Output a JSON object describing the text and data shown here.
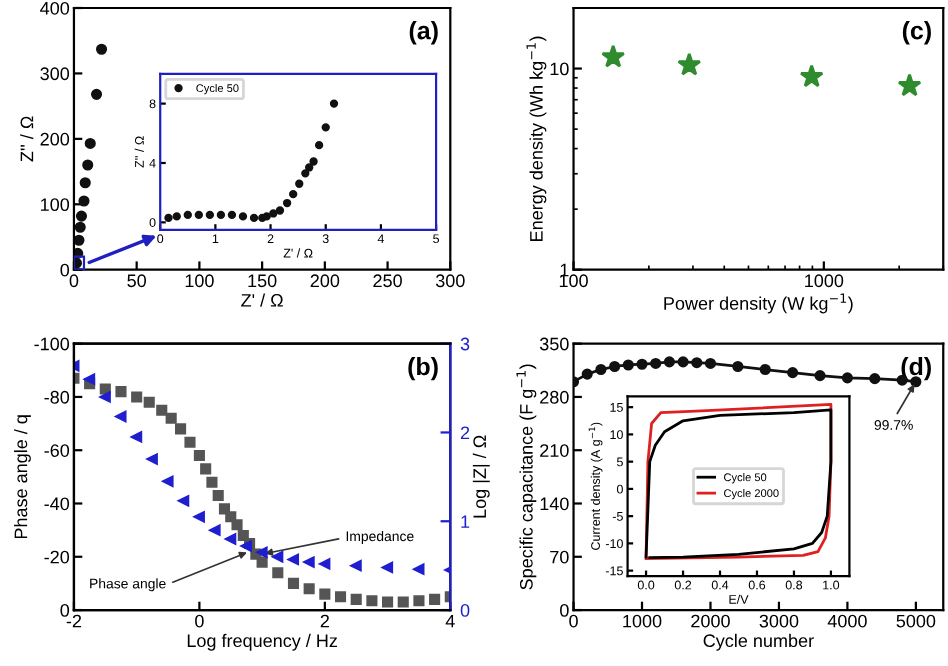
{
  "chart_data": [
    {
      "type": "scatter",
      "xlabel": "Z' / Ω",
      "ylabel": "Z'' / Ω",
      "xlim": [
        0,
        300
      ],
      "ylim": [
        0,
        400
      ],
      "xticks": [
        0,
        50,
        100,
        150,
        200,
        250,
        300
      ],
      "yticks": [
        0,
        100,
        200,
        300,
        400
      ],
      "marker": "circle",
      "annotations": [
        "(a)"
      ],
      "series": [
        {
          "color": "#111111",
          "x": [
            2,
            3,
            4,
            5,
            6,
            8,
            9,
            11,
            13,
            18,
            22
          ],
          "values": [
            10,
            25,
            45,
            65,
            82,
            105,
            133,
            160,
            193,
            268,
            337
          ]
        }
      ]
    },
    {
      "type": "scatter",
      "xlabel": "Z' / Ω",
      "ylabel": "Z'' / Ω",
      "xlim": [
        0,
        5
      ],
      "ylim": [
        -0.5,
        10
      ],
      "xticks": [
        0,
        1,
        2,
        3,
        4,
        5
      ],
      "yticks": [
        0,
        4,
        8
      ],
      "marker": "circle",
      "legend": "top left",
      "series": [
        {
          "name": "Cycle 50",
          "color": "#111111",
          "x": [
            0.15,
            0.3,
            0.5,
            0.7,
            0.9,
            1.1,
            1.3,
            1.5,
            1.7,
            1.85,
            1.93,
            2.05,
            2.17,
            2.3,
            2.41,
            2.52,
            2.63,
            2.7,
            2.78,
            2.88,
            3.0,
            3.15
          ],
          "values": [
            0.3,
            0.4,
            0.5,
            0.5,
            0.5,
            0.5,
            0.5,
            0.4,
            0.3,
            0.3,
            0.4,
            0.6,
            0.8,
            1.3,
            1.9,
            2.6,
            3.3,
            3.7,
            4.1,
            5.2,
            6.4,
            8
          ]
        }
      ]
    },
    {
      "type": "scatter",
      "xlabel": "Power density (W kg$^{−1}$)",
      "ylabel": "Energy density (Wh kg$^{−1}$)",
      "log": "xy",
      "xlim": [
        100,
        3000
      ],
      "ylim": [
        1,
        20
      ],
      "xticks": [
        100,
        1000
      ],
      "yticks": [
        1,
        10
      ],
      "marker": "star",
      "annotations": [
        "(c)"
      ],
      "series": [
        {
          "color": "#2e8b2e",
          "x": [
            144,
            290,
            894,
            2200
          ],
          "values": [
            11.4,
            10.4,
            9.1,
            8.2
          ]
        }
      ]
    },
    {
      "type": "scatter",
      "xlabel": "Log frequency / Hz",
      "ylabel": "Phase angle / q",
      "y2label": "Log |Z| / Ω",
      "xlim": [
        -2,
        4
      ],
      "ylim": [
        0,
        -100
      ],
      "xticks": [
        -2,
        0,
        2,
        4
      ],
      "yticks": [
        -100,
        -80,
        -60,
        -40,
        -20,
        0
      ],
      "y2lim": [
        0,
        3
      ],
      "y2ticks": [
        0,
        1,
        2,
        3
      ],
      "annotations": [
        "(b)",
        {
          "text": "Impedance",
          "x": 1.0,
          "y": -21
        },
        {
          "text": "Phase angle",
          "x": 0.8,
          "y": -22
        }
      ],
      "series": [
        {
          "color": "#555555",
          "marker": "square",
          "x": [
            -2,
            -1.75,
            -1.5,
            -1.25,
            -1,
            -0.8,
            -0.6,
            -0.45,
            -0.3,
            -0.15,
            0,
            0.1,
            0.2,
            0.3,
            0.4,
            0.5,
            0.6,
            0.7,
            0.8,
            0.9,
            1,
            1.25,
            1.5,
            1.75,
            2,
            2.25,
            2.5,
            2.75,
            3,
            3.25,
            3.5,
            3.75,
            4
          ],
          "values": [
            -87,
            -85,
            -83,
            -82,
            -80,
            -78,
            -75,
            -72,
            -68,
            -63,
            -58,
            -53,
            -48,
            -43,
            -38,
            -35,
            -32,
            -28,
            -25,
            -21,
            -18,
            -14,
            -10,
            -8,
            -6,
            -5,
            -4,
            -3.5,
            -3,
            -3,
            -3.5,
            -4,
            -5
          ]
        },
        {
          "color": "#1f1fd0",
          "marker": "triangle",
          "axis": "y2",
          "x": [
            -2,
            -1.75,
            -1.5,
            -1.25,
            -1,
            -0.75,
            -0.5,
            -0.25,
            0,
            0.25,
            0.5,
            0.75,
            1,
            1.25,
            1.5,
            1.75,
            2,
            2.5,
            3,
            3.5,
            4
          ],
          "values": [
            2.75,
            2.6,
            2.4,
            2.18,
            1.95,
            1.7,
            1.45,
            1.23,
            1.05,
            0.9,
            0.8,
            0.72,
            0.65,
            0.6,
            0.57,
            0.54,
            0.52,
            0.5,
            0.48,
            0.46,
            0.45
          ]
        }
      ]
    },
    {
      "type": "line",
      "xlabel": "Cycle number",
      "ylabel": "Specific capacitance (F g$^{−1}$)",
      "xlim": [
        0,
        5400
      ],
      "ylim": [
        0,
        350
      ],
      "xticks": [
        0,
        1000,
        2000,
        3000,
        4000,
        5000
      ],
      "yticks": [
        0,
        70,
        140,
        210,
        280,
        350
      ],
      "marker": "circle",
      "annotations": [
        "(d)",
        {
          "text": "99.7%",
          "x": 5000,
          "y": 300
        }
      ],
      "series": [
        {
          "color": "#111111",
          "x": [
            0,
            200,
            400,
            600,
            800,
            1000,
            1200,
            1400,
            1600,
            1800,
            2000,
            2400,
            2800,
            3200,
            3600,
            4000,
            4400,
            4800,
            5000
          ],
          "values": [
            300,
            310,
            316,
            320,
            322,
            323,
            324,
            326,
            326,
            325,
            324,
            320,
            316,
            312,
            308,
            305,
            304,
            302,
            300
          ]
        }
      ]
    },
    {
      "type": "line",
      "xlabel": "E/V",
      "ylabel": "Current density (A g$^{−1}$)",
      "xlim": [
        -0.1,
        1.1
      ],
      "ylim": [
        -16,
        17
      ],
      "xticks": [
        {
          "value": 0,
          "label": "0.0"
        },
        0.2,
        0.4,
        0.6,
        0.8,
        {
          "value": 1,
          "label": "1.0"
        }
      ],
      "yticks": [
        -15,
        -10,
        -5,
        0,
        5,
        10,
        15
      ],
      "legend": "center",
      "series": [
        {
          "name": "Cycle 50",
          "color": "#000000",
          "x": [
            0,
            0.02,
            0.05,
            0.1,
            0.2,
            0.4,
            0.8,
            1.0,
            1.0,
            0.98,
            0.95,
            0.9,
            0.8,
            0.5,
            0.2,
            0.02
          ],
          "values": [
            -12.5,
            5,
            8,
            10.5,
            12.5,
            13.5,
            14,
            14.5,
            5,
            -5,
            -8,
            -10,
            -11,
            -12,
            -12.5,
            -12.6
          ]
        },
        {
          "name": "Cycle 2000",
          "color": "#e02020",
          "x": [
            0,
            0.01,
            0.03,
            0.08,
            0.3,
            1.0,
            1.0,
            0.99,
            0.97,
            0.93,
            0.85,
            0.5,
            0
          ],
          "values": [
            -12.5,
            5,
            12,
            14,
            14.3,
            15.5,
            5,
            -5,
            -9,
            -11.5,
            -12.2,
            -12.5,
            -12.8
          ]
        }
      ]
    }
  ]
}
